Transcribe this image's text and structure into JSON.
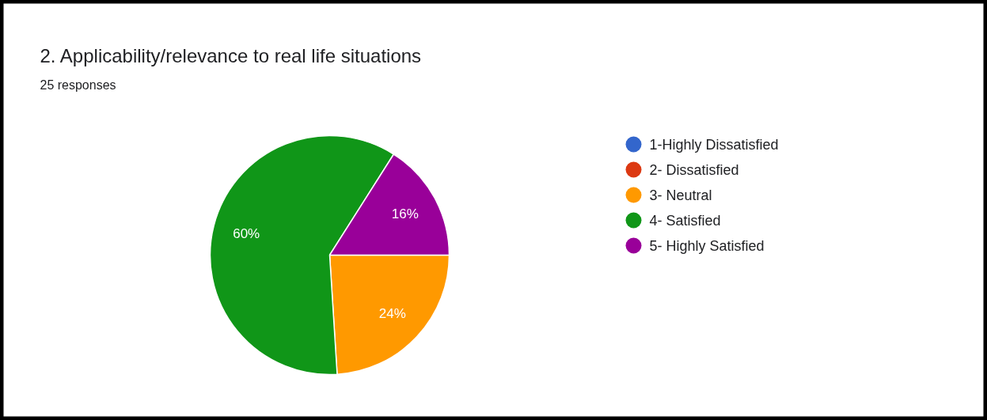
{
  "chart_data": {
    "type": "pie",
    "title": "2. Applicability/relevance to real life situations",
    "subtitle": "25 responses",
    "categories": [
      "1-Highly Dissatisfied",
      "2- Dissatisfied",
      "3- Neutral",
      "4- Satisfied",
      "5- Highly Satisfied"
    ],
    "values": [
      0,
      0,
      24,
      60,
      16
    ],
    "colors": [
      "#3366cc",
      "#dc3912",
      "#ff9900",
      "#109618",
      "#990099"
    ],
    "value_labels": [
      null,
      null,
      "24%",
      "60%",
      "16%"
    ],
    "legend": "right"
  }
}
